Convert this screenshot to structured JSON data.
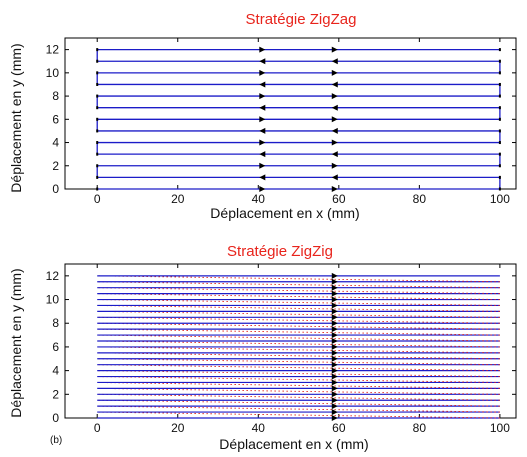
{
  "chart_data": [
    {
      "type": "line",
      "title": "Stratégie ZigZag",
      "xlabel": "Déplacement en x (mm)",
      "ylabel": "Déplacement en y (mm)",
      "panel_label": "",
      "xlim": [
        -8,
        104
      ],
      "ylim": [
        0,
        13
      ],
      "xticks": [
        0,
        20,
        40,
        60,
        80,
        100
      ],
      "yticks": [
        0,
        2,
        4,
        6,
        8,
        10,
        12
      ],
      "path_style": "zigzag",
      "x_start": 0,
      "x_end": 100,
      "y_passes": [
        0,
        1,
        2,
        3,
        4,
        5,
        6,
        7,
        8,
        9,
        10,
        11,
        12
      ],
      "line_color": "#1c1cc8",
      "arrow_x": [
        41,
        59
      ],
      "grid": false,
      "legend": "none"
    },
    {
      "type": "line",
      "title": "Stratégie ZigZig",
      "xlabel": "Déplacement en x (mm)",
      "ylabel": "Déplacement en y (mm)",
      "panel_label": "(b)",
      "xlim": [
        -8,
        104
      ],
      "ylim": [
        0,
        13
      ],
      "xticks": [
        0,
        20,
        40,
        60,
        80,
        100
      ],
      "yticks": [
        0,
        2,
        4,
        6,
        8,
        10,
        12
      ],
      "path_style": "zigzig",
      "x_start": 0,
      "x_end": 100,
      "y_passes": [
        0,
        0.5,
        1,
        1.5,
        2,
        2.5,
        3,
        3.5,
        4,
        4.5,
        5,
        5.5,
        6,
        6.5,
        7,
        7.5,
        8,
        8.5,
        9,
        9.5,
        10,
        10.5,
        11,
        11.5,
        12
      ],
      "line_color": "#1c1cc8",
      "return_color": "#e0201c",
      "arrow_x": [
        59
      ],
      "grid": false,
      "legend": "none"
    }
  ]
}
